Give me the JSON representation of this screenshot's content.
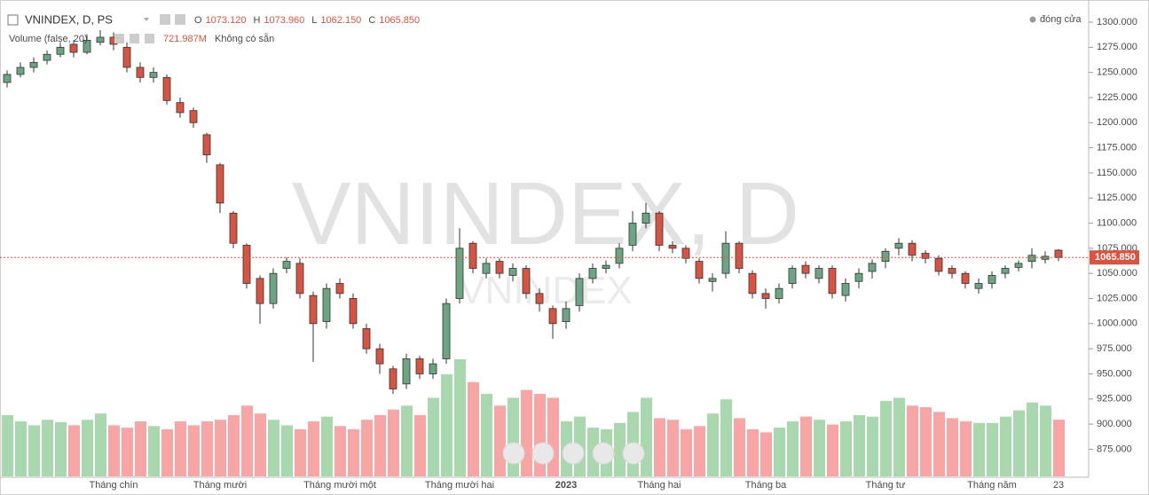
{
  "chart_data": {
    "type": "candlestick",
    "title": "VNINDEX, D, PS",
    "watermark": "VNINDEX, D",
    "watermark_sub": "VNINDEX",
    "ohlc_names": [
      "O",
      "H",
      "L",
      "C"
    ],
    "ohlc_labels": [
      "1073.120",
      "1073.960",
      "1062.150",
      "1065.850"
    ],
    "volume_title": "Volume (false, 20)",
    "volume_label": "721.987M",
    "volume_note": "Không có sẵn",
    "status": "đóng cửa",
    "up_color": "#6ba583",
    "down_color": "#d75442",
    "volume_up_color": "#a9d8ae",
    "volume_down_color": "#f7a5a5",
    "categories": [
      null,
      null,
      null,
      null,
      null,
      null,
      null,
      null,
      "Tháng chín",
      null,
      null,
      null,
      null,
      null,
      null,
      null,
      "Tháng mười",
      null,
      null,
      null,
      null,
      null,
      null,
      null,
      null,
      "Tháng mười một",
      null,
      null,
      null,
      null,
      null,
      null,
      null,
      null,
      "Tháng mười hai",
      null,
      null,
      null,
      null,
      null,
      null,
      null,
      "2023",
      null,
      null,
      null,
      null,
      null,
      null,
      "Tháng hai",
      null,
      null,
      null,
      null,
      null,
      null,
      null,
      "Tháng ba",
      null,
      null,
      null,
      null,
      null,
      null,
      null,
      null,
      "Tháng tư",
      null,
      null,
      null,
      null,
      null,
      null,
      null,
      "Tháng năm",
      null,
      null,
      null,
      null,
      "23"
    ],
    "open": [
      1240,
      1248,
      1255,
      1262,
      1268,
      1278,
      1270,
      1280,
      1285,
      1275,
      1255,
      1245,
      1245,
      1220,
      1212,
      1188,
      1158,
      1110,
      1078,
      1045,
      1020,
      1055,
      1060,
      1028,
      1002,
      1040,
      1025,
      995,
      975,
      955,
      940,
      965,
      950,
      965,
      1025,
      1080,
      1050,
      1062,
      1048,
      1055,
      1030,
      1015,
      1002,
      1018,
      1045,
      1055,
      1060,
      1078,
      1100,
      1110,
      1078,
      1075,
      1062,
      1042,
      1050,
      1080,
      1050,
      1030,
      1025,
      1040,
      1058,
      1045,
      1055,
      1028,
      1042,
      1052,
      1062,
      1075,
      1080,
      1070,
      1065,
      1055,
      1050,
      1035,
      1040,
      1050,
      1056,
      1062,
      1064,
      1073.12
    ],
    "high": [
      1252,
      1260,
      1265,
      1272,
      1280,
      1282,
      1288,
      1292,
      1290,
      1280,
      1260,
      1255,
      1248,
      1225,
      1215,
      1190,
      1160,
      1112,
      1080,
      1048,
      1055,
      1066,
      1065,
      1032,
      1040,
      1045,
      1030,
      1000,
      980,
      958,
      970,
      968,
      965,
      1025,
      1095,
      1082,
      1065,
      1065,
      1060,
      1058,
      1035,
      1018,
      1022,
      1050,
      1060,
      1063,
      1080,
      1112,
      1120,
      1112,
      1082,
      1078,
      1065,
      1050,
      1092,
      1082,
      1053,
      1035,
      1040,
      1058,
      1062,
      1058,
      1058,
      1045,
      1055,
      1064,
      1075,
      1085,
      1083,
      1073,
      1068,
      1058,
      1052,
      1045,
      1052,
      1058,
      1063,
      1075,
      1072,
      1073.96
    ],
    "low": [
      1235,
      1245,
      1250,
      1258,
      1265,
      1265,
      1268,
      1277,
      1272,
      1250,
      1240,
      1240,
      1218,
      1205,
      1195,
      1160,
      1110,
      1075,
      1035,
      1000,
      1015,
      1050,
      1025,
      962,
      995,
      1025,
      995,
      970,
      950,
      930,
      935,
      945,
      945,
      960,
      1020,
      1050,
      1045,
      1045,
      1042,
      1025,
      1012,
      985,
      995,
      1012,
      1040,
      1050,
      1055,
      1072,
      1095,
      1072,
      1070,
      1060,
      1040,
      1032,
      1045,
      1050,
      1025,
      1015,
      1020,
      1035,
      1045,
      1040,
      1025,
      1022,
      1035,
      1045,
      1055,
      1068,
      1062,
      1060,
      1048,
      1045,
      1035,
      1030,
      1035,
      1045,
      1052,
      1055,
      1060,
      1062.15
    ],
    "close": [
      1248,
      1255,
      1260,
      1268,
      1275,
      1270,
      1282,
      1285,
      1278,
      1255,
      1245,
      1250,
      1222,
      1210,
      1200,
      1168,
      1120,
      1080,
      1040,
      1020,
      1050,
      1062,
      1030,
      1000,
      1035,
      1030,
      1000,
      975,
      960,
      935,
      965,
      950,
      960,
      1020,
      1075,
      1055,
      1060,
      1050,
      1055,
      1030,
      1020,
      1000,
      1015,
      1045,
      1055,
      1058,
      1075,
      1100,
      1110,
      1078,
      1075,
      1065,
      1045,
      1045,
      1080,
      1055,
      1030,
      1025,
      1035,
      1055,
      1050,
      1055,
      1030,
      1040,
      1050,
      1060,
      1072,
      1080,
      1068,
      1065,
      1052,
      1050,
      1040,
      1040,
      1048,
      1055,
      1060,
      1068,
      1067,
      1065.85
    ],
    "volume": [
      780,
      700,
      650,
      720,
      690,
      650,
      720,
      800,
      650,
      620,
      700,
      640,
      600,
      700,
      650,
      700,
      720,
      780,
      900,
      800,
      720,
      650,
      600,
      700,
      760,
      640,
      600,
      720,
      780,
      850,
      900,
      780,
      1000,
      1300,
      1490,
      1200,
      1050,
      900,
      1000,
      1100,
      1050,
      1000,
      700,
      760,
      620,
      600,
      680,
      820,
      1000,
      740,
      720,
      600,
      640,
      800,
      980,
      740,
      600,
      560,
      620,
      700,
      760,
      720,
      660,
      700,
      780,
      760,
      960,
      1000,
      900,
      880,
      820,
      740,
      700,
      680,
      680,
      760,
      840,
      940,
      900,
      721.987
    ],
    "ylim": [
      848,
      1300
    ],
    "yticks": [
      {
        "value": 875,
        "label": "875.000"
      },
      {
        "value": 900,
        "label": "900.000"
      },
      {
        "value": 925,
        "label": "925.000"
      },
      {
        "value": 950,
        "label": "950.000"
      },
      {
        "value": 975,
        "label": "975.000"
      },
      {
        "value": 1000,
        "label": "1000.000"
      },
      {
        "value": 1025,
        "label": "1025.000"
      },
      {
        "value": 1050,
        "label": "1050.000"
      },
      {
        "value": 1075,
        "label": "1075.000"
      },
      {
        "value": 1100,
        "label": "1100.000"
      },
      {
        "value": 1125,
        "label": "1125.000"
      },
      {
        "value": 1150,
        "label": "1150.000"
      },
      {
        "value": 1175,
        "label": "1175.000"
      },
      {
        "value": 1200,
        "label": "1200.000"
      },
      {
        "value": 1225,
        "label": "1225.000"
      },
      {
        "value": 1250,
        "label": "1250.000"
      },
      {
        "value": 1275,
        "label": "1275.000"
      },
      {
        "value": 1300,
        "label": "1300.000"
      }
    ]
  }
}
